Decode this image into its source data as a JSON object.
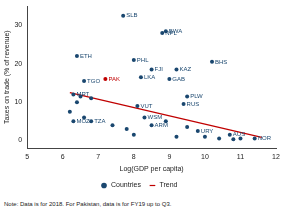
{
  "chart_data": {
    "type": "scatter",
    "x_label": "Log(GDP per capita)",
    "y_label": "Taxes on trade (% of revenue)",
    "note": "Note: Data is for 2018. For Pakistan, data is for FY19 up to Q3.",
    "xlim": [
      5,
      12
    ],
    "xticks": [
      5,
      6,
      7,
      8,
      9,
      10,
      11,
      12
    ],
    "ylim": [
      -2,
      35
    ],
    "yticks": [
      0,
      10,
      20,
      30
    ],
    "grid": false,
    "legend": "bottom",
    "series": [
      {
        "name": "Countries",
        "type": "scatter",
        "marker": "circle",
        "color": "#1a476f",
        "x": [
          6.3,
          6.5,
          6.8,
          6.4,
          6.2,
          6.8,
          6.3,
          6.6,
          6.6,
          6.4,
          7.2,
          7.7,
          8.0,
          8.2,
          8.5,
          8.8,
          8.9,
          9.2,
          9.0,
          10.2,
          9.5,
          9.4,
          8.1,
          8.3,
          8.5,
          7.8,
          8.9,
          9.8,
          9.5,
          10.0,
          10.7,
          11.4,
          10.4,
          11.0,
          7.4,
          8.0,
          9.2,
          10.8
        ],
        "values": [
          12,
          11.5,
          11,
          10,
          7.5,
          5,
          5,
          6,
          15.5,
          22,
          16,
          32.5,
          21,
          16.5,
          18.5,
          28,
          28.5,
          18.5,
          16,
          20.5,
          11.5,
          9.5,
          9,
          6,
          4,
          3,
          5,
          2.5,
          3.5,
          1,
          1.5,
          0.5,
          0.5,
          0.5,
          4,
          1.5,
          1,
          0.3
        ],
        "labels": [
          "MRT",
          null,
          null,
          null,
          null,
          "TZA",
          "MOZ",
          null,
          "TGO",
          "ETH",
          "PAK",
          "SLB",
          "PHL",
          "LKA",
          "FJI",
          "NPL",
          "BWA",
          "KAZ",
          "GAB",
          "BHS",
          "PLW",
          "RUS",
          "VUT",
          "WSM",
          "ARM",
          null,
          null,
          "URY",
          null,
          null,
          "AUS",
          "NOR",
          null,
          null,
          null,
          null,
          null,
          null
        ],
        "colors": [
          "#1a476f",
          "#1a476f",
          "#1a476f",
          "#1a476f",
          "#1a476f",
          "#1a476f",
          "#1a476f",
          "#1a476f",
          "#1a476f",
          "#1a476f",
          "#c00000",
          "#1a476f",
          "#1a476f",
          "#1a476f",
          "#1a476f",
          "#1a476f",
          "#1a476f",
          "#1a476f",
          "#1a476f",
          "#1a476f",
          "#1a476f",
          "#1a476f",
          "#1a476f",
          "#1a476f",
          "#1a476f",
          "#1a476f",
          "#1a476f",
          "#1a476f",
          "#1a476f",
          "#1a476f",
          "#1a476f",
          "#1a476f",
          "#1a476f",
          "#1a476f",
          "#1a476f",
          "#1a476f",
          "#1a476f",
          "#1a476f"
        ]
      },
      {
        "name": "Trend",
        "type": "line",
        "line_style": "solid",
        "color": "#c00000",
        "x": [
          6.2,
          11.6
        ],
        "values": [
          12.5,
          0.8
        ]
      }
    ]
  }
}
